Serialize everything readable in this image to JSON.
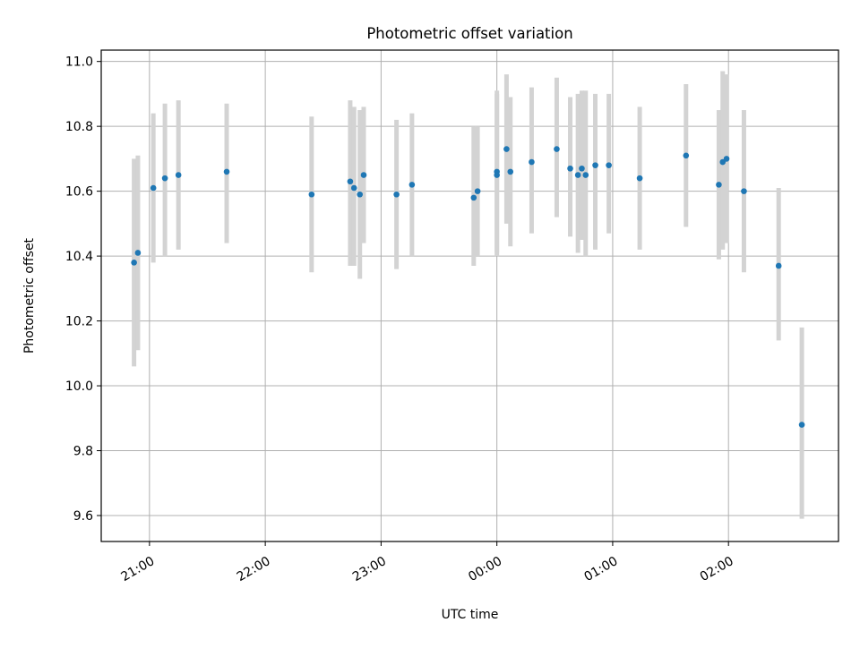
{
  "chart_data": {
    "type": "scatter",
    "title": "Photometric offset variation",
    "xlabel": "UTC time",
    "ylabel": "Photometric offset",
    "x_axis_kind": "time",
    "x_reference_date": "",
    "xlim": [
      "20:35",
      "02:57"
    ],
    "ylim": [
      9.52,
      11.035
    ],
    "x_ticks": [
      "21:00",
      "22:00",
      "23:00",
      "00:00",
      "01:00",
      "02:00"
    ],
    "y_ticks": [
      "9.6",
      "9.8",
      "10.0",
      "10.2",
      "10.4",
      "10.6",
      "10.8",
      "11.0"
    ],
    "y_tick_values": [
      9.6,
      9.8,
      10.0,
      10.2,
      10.4,
      10.6,
      10.8,
      11.0
    ],
    "grid": true,
    "marker_color": "#1f77b4",
    "errorbar_color": "#d3d3d3",
    "series": [
      {
        "points": [
          {
            "t": "20:52",
            "y": 10.38,
            "lo": 10.06,
            "hi": 10.7
          },
          {
            "t": "20:54",
            "y": 10.41,
            "lo": 10.11,
            "hi": 10.71
          },
          {
            "t": "21:02",
            "y": 10.61,
            "lo": 10.38,
            "hi": 10.84
          },
          {
            "t": "21:08",
            "y": 10.64,
            "lo": 10.4,
            "hi": 10.87
          },
          {
            "t": "21:15",
            "y": 10.65,
            "lo": 10.42,
            "hi": 10.88
          },
          {
            "t": "21:40",
            "y": 10.66,
            "lo": 10.44,
            "hi": 10.87
          },
          {
            "t": "22:24",
            "y": 10.59,
            "lo": 10.35,
            "hi": 10.83
          },
          {
            "t": "22:44",
            "y": 10.63,
            "lo": 10.37,
            "hi": 10.88
          },
          {
            "t": "22:46",
            "y": 10.61,
            "lo": 10.37,
            "hi": 10.86
          },
          {
            "t": "22:49",
            "y": 10.59,
            "lo": 10.33,
            "hi": 10.85
          },
          {
            "t": "22:51",
            "y": 10.65,
            "lo": 10.44,
            "hi": 10.86
          },
          {
            "t": "23:08",
            "y": 10.59,
            "lo": 10.36,
            "hi": 10.82
          },
          {
            "t": "23:16",
            "y": 10.62,
            "lo": 10.4,
            "hi": 10.84
          },
          {
            "t": "23:48",
            "y": 10.58,
            "lo": 10.37,
            "hi": 10.8
          },
          {
            "t": "23:50",
            "y": 10.6,
            "lo": 10.4,
            "hi": 10.8
          },
          {
            "t": "00:00",
            "y": 10.66,
            "lo": 10.41,
            "hi": 10.91
          },
          {
            "t": "00:00",
            "y": 10.65,
            "lo": 10.4,
            "hi": 10.9
          },
          {
            "t": "00:05",
            "y": 10.73,
            "lo": 10.5,
            "hi": 10.96
          },
          {
            "t": "00:07",
            "y": 10.66,
            "lo": 10.43,
            "hi": 10.89
          },
          {
            "t": "00:18",
            "y": 10.69,
            "lo": 10.47,
            "hi": 10.92
          },
          {
            "t": "00:31",
            "y": 10.73,
            "lo": 10.52,
            "hi": 10.95
          },
          {
            "t": "00:38",
            "y": 10.67,
            "lo": 10.46,
            "hi": 10.89
          },
          {
            "t": "00:42",
            "y": 10.65,
            "lo": 10.41,
            "hi": 10.9
          },
          {
            "t": "00:44",
            "y": 10.67,
            "lo": 10.45,
            "hi": 10.91
          },
          {
            "t": "00:46",
            "y": 10.65,
            "lo": 10.4,
            "hi": 10.91
          },
          {
            "t": "00:51",
            "y": 10.68,
            "lo": 10.42,
            "hi": 10.9
          },
          {
            "t": "00:58",
            "y": 10.68,
            "lo": 10.47,
            "hi": 10.9
          },
          {
            "t": "01:14",
            "y": 10.64,
            "lo": 10.42,
            "hi": 10.86
          },
          {
            "t": "01:38",
            "y": 10.71,
            "lo": 10.49,
            "hi": 10.93
          },
          {
            "t": "01:55",
            "y": 10.62,
            "lo": 10.39,
            "hi": 10.85
          },
          {
            "t": "01:57",
            "y": 10.69,
            "lo": 10.42,
            "hi": 10.97
          },
          {
            "t": "01:59",
            "y": 10.7,
            "lo": 10.44,
            "hi": 10.96
          },
          {
            "t": "02:08",
            "y": 10.6,
            "lo": 10.35,
            "hi": 10.85
          },
          {
            "t": "02:26",
            "y": 10.37,
            "lo": 10.14,
            "hi": 10.61
          },
          {
            "t": "02:38",
            "y": 9.88,
            "lo": 9.59,
            "hi": 10.18
          }
        ]
      }
    ]
  }
}
